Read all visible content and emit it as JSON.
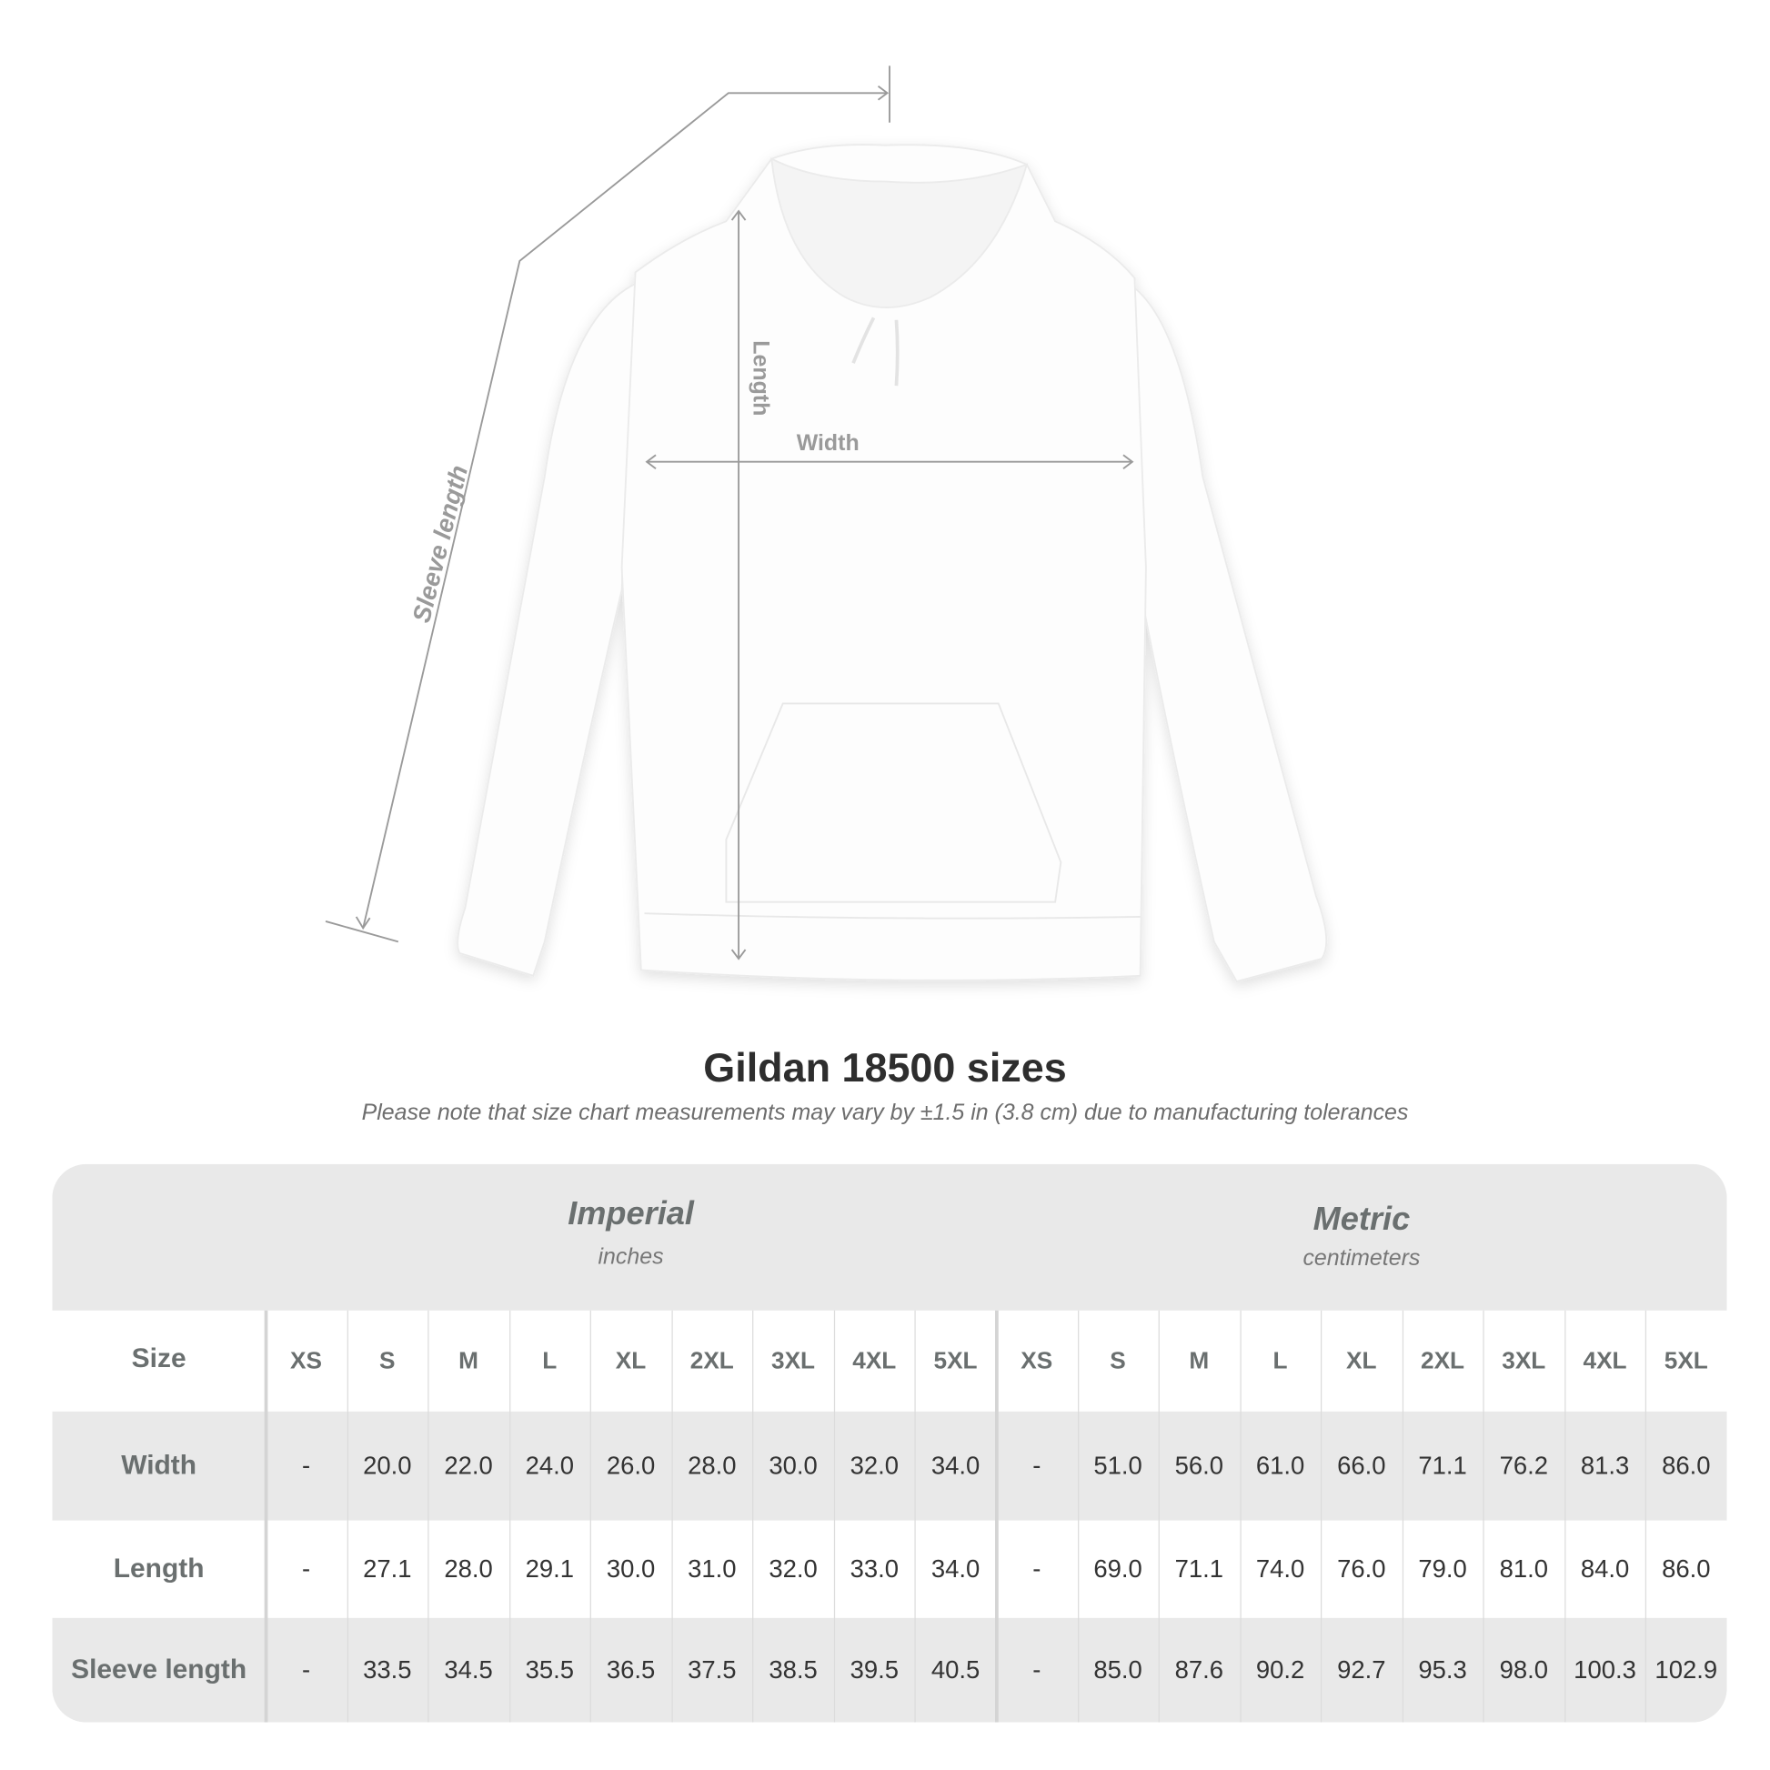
{
  "diagram": {
    "labels": {
      "sleeve": "Sleeve length",
      "length": "Length",
      "width": "Width"
    },
    "line_color": "#9a9a9a"
  },
  "title": "Gildan 18500 sizes",
  "note": "Please note that size chart measurements may vary by ±1.5 in (3.8 cm) due to manufacturing tolerances",
  "table": {
    "imperial": {
      "name": "Imperial",
      "unit": "inches"
    },
    "metric": {
      "name": "Metric",
      "unit": "centimeters"
    },
    "size_label": "Size",
    "sizes": [
      "XS",
      "S",
      "M",
      "L",
      "XL",
      "2XL",
      "3XL",
      "4XL",
      "5XL",
      "XS",
      "S",
      "M",
      "L",
      "XL",
      "2XL",
      "3XL",
      "4XL",
      "5XL"
    ],
    "rows": [
      {
        "label": "Width",
        "values": [
          "-",
          "20.0",
          "22.0",
          "24.0",
          "26.0",
          "28.0",
          "30.0",
          "32.0",
          "34.0",
          "-",
          "51.0",
          "56.0",
          "61.0",
          "66.0",
          "71.1",
          "76.2",
          "81.3",
          "86.0"
        ]
      },
      {
        "label": "Length",
        "values": [
          "-",
          "27.1",
          "28.0",
          "29.1",
          "30.0",
          "31.0",
          "32.0",
          "33.0",
          "34.0",
          "-",
          "69.0",
          "71.1",
          "74.0",
          "76.0",
          "79.0",
          "81.0",
          "84.0",
          "86.0"
        ]
      },
      {
        "label": "Sleeve length",
        "values": [
          "-",
          "33.5",
          "34.5",
          "35.5",
          "36.5",
          "37.5",
          "38.5",
          "39.5",
          "40.5",
          "-",
          "85.0",
          "87.6",
          "90.2",
          "92.7",
          "95.3",
          "98.0",
          "100.3",
          "102.9"
        ]
      }
    ],
    "band_color": "#e9e9e9"
  }
}
